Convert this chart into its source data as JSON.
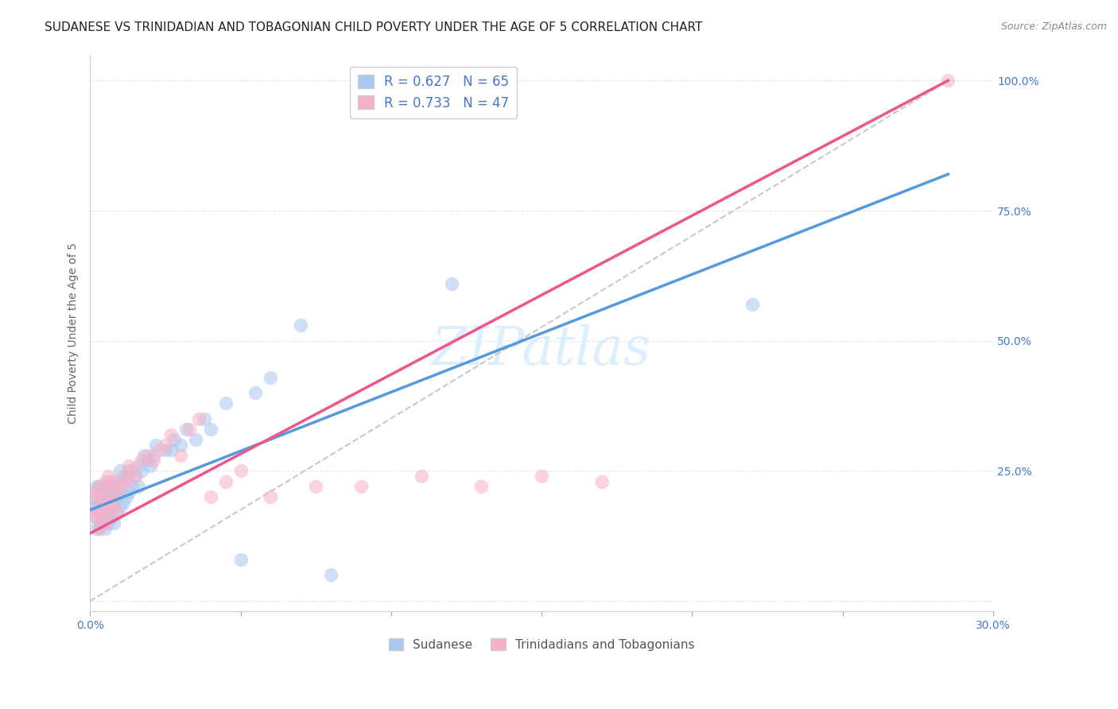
{
  "title": "SUDANESE VS TRINIDADIAN AND TOBAGONIAN CHILD POVERTY UNDER THE AGE OF 5 CORRELATION CHART",
  "source": "Source: ZipAtlas.com",
  "ylabel": "Child Poverty Under the Age of 5",
  "xlim": [
    0.0,
    0.3
  ],
  "ylim": [
    -0.02,
    1.05
  ],
  "xticks": [
    0.0,
    0.05,
    0.1,
    0.15,
    0.2,
    0.25,
    0.3
  ],
  "xticklabels": [
    "0.0%",
    "",
    "",
    "",
    "",
    "",
    "30.0%"
  ],
  "yticks": [
    0.0,
    0.25,
    0.5,
    0.75,
    1.0
  ],
  "yticklabels": [
    "",
    "25.0%",
    "50.0%",
    "75.0%",
    "100.0%"
  ],
  "blue_color": "#a8c8f0",
  "pink_color": "#f8b0c8",
  "blue_line_color": "#5599dd",
  "pink_line_color": "#ee5588",
  "ref_line_color": "#c8c8c8",
  "blue_R": 0.627,
  "blue_N": 65,
  "pink_R": 0.733,
  "pink_N": 47,
  "legend_label_blue": "Sudanese",
  "legend_label_pink": "Trinidadians and Tobagonians",
  "watermark": "ZIPatlas",
  "blue_scatter_x": [
    0.001,
    0.001,
    0.002,
    0.002,
    0.002,
    0.002,
    0.003,
    0.003,
    0.003,
    0.003,
    0.004,
    0.004,
    0.004,
    0.005,
    0.005,
    0.005,
    0.005,
    0.006,
    0.006,
    0.006,
    0.006,
    0.007,
    0.007,
    0.007,
    0.008,
    0.008,
    0.008,
    0.009,
    0.009,
    0.009,
    0.01,
    0.01,
    0.01,
    0.011,
    0.011,
    0.012,
    0.012,
    0.013,
    0.013,
    0.014,
    0.015,
    0.016,
    0.016,
    0.017,
    0.018,
    0.019,
    0.02,
    0.021,
    0.022,
    0.025,
    0.027,
    0.028,
    0.03,
    0.032,
    0.035,
    0.038,
    0.04,
    0.045,
    0.05,
    0.055,
    0.06,
    0.07,
    0.08,
    0.12,
    0.22
  ],
  "blue_scatter_y": [
    0.18,
    0.2,
    0.14,
    0.16,
    0.18,
    0.22,
    0.14,
    0.17,
    0.19,
    0.22,
    0.15,
    0.18,
    0.21,
    0.14,
    0.16,
    0.19,
    0.22,
    0.15,
    0.18,
    0.2,
    0.23,
    0.16,
    0.19,
    0.22,
    0.15,
    0.18,
    0.21,
    0.17,
    0.2,
    0.23,
    0.18,
    0.21,
    0.25,
    0.19,
    0.23,
    0.2,
    0.24,
    0.21,
    0.25,
    0.22,
    0.24,
    0.22,
    0.26,
    0.25,
    0.28,
    0.27,
    0.26,
    0.28,
    0.3,
    0.29,
    0.29,
    0.31,
    0.3,
    0.33,
    0.31,
    0.35,
    0.33,
    0.38,
    0.08,
    0.4,
    0.43,
    0.53,
    0.05,
    0.61,
    0.57
  ],
  "pink_scatter_x": [
    0.001,
    0.001,
    0.002,
    0.002,
    0.003,
    0.003,
    0.003,
    0.004,
    0.004,
    0.005,
    0.005,
    0.005,
    0.006,
    0.006,
    0.006,
    0.007,
    0.007,
    0.008,
    0.008,
    0.009,
    0.009,
    0.01,
    0.011,
    0.012,
    0.013,
    0.014,
    0.015,
    0.017,
    0.019,
    0.021,
    0.023,
    0.025,
    0.027,
    0.03,
    0.033,
    0.036,
    0.04,
    0.045,
    0.05,
    0.06,
    0.075,
    0.09,
    0.11,
    0.13,
    0.15,
    0.17,
    0.285
  ],
  "pink_scatter_y": [
    0.17,
    0.21,
    0.16,
    0.2,
    0.14,
    0.18,
    0.22,
    0.16,
    0.2,
    0.15,
    0.19,
    0.23,
    0.17,
    0.2,
    0.24,
    0.18,
    0.22,
    0.19,
    0.23,
    0.17,
    0.21,
    0.22,
    0.24,
    0.23,
    0.26,
    0.25,
    0.24,
    0.27,
    0.28,
    0.27,
    0.29,
    0.3,
    0.32,
    0.28,
    0.33,
    0.35,
    0.2,
    0.23,
    0.25,
    0.2,
    0.22,
    0.22,
    0.24,
    0.22,
    0.24,
    0.23,
    1.0
  ],
  "blue_line_x": [
    0.0,
    0.285
  ],
  "blue_line_y": [
    0.175,
    0.82
  ],
  "pink_line_x": [
    0.0,
    0.285
  ],
  "pink_line_y": [
    0.13,
    1.0
  ],
  "ref_line_x": [
    0.0,
    0.285
  ],
  "ref_line_y": [
    0.0,
    1.0
  ],
  "title_fontsize": 11,
  "axis_label_fontsize": 10,
  "tick_fontsize": 10,
  "legend_fontsize": 12,
  "watermark_fontsize": 48,
  "watermark_color": "#ddeeff",
  "source_fontsize": 9,
  "source_color": "#888888",
  "axis_label_color": "#666666",
  "tick_color": "#4477cc",
  "grid_color": "#e8e8e8",
  "background_color": "#ffffff"
}
